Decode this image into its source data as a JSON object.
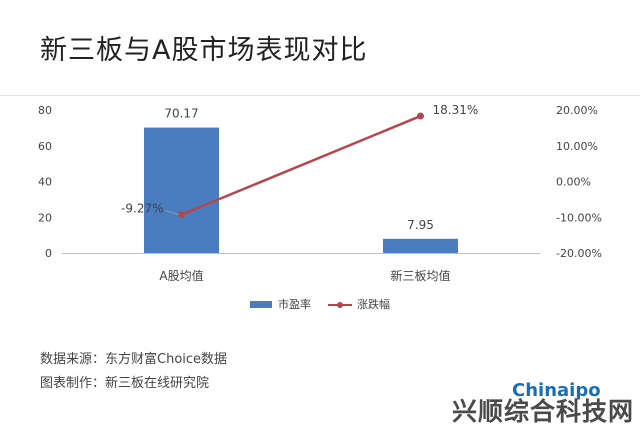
{
  "header": {
    "title": "新三板与A股市场表现对比"
  },
  "footer": {
    "source_label": "数据来源：",
    "source_value": "东方财富Choice数据",
    "made_label": "图表制作：",
    "made_value": "新三板在线研究院"
  },
  "watermark": {
    "text": "兴顺综合科技网",
    "brand": "Chinaipo"
  },
  "chart_data": {
    "type": "bar",
    "categories": [
      "A股均值",
      "新三板均值"
    ],
    "series": [
      {
        "name": "市盈率",
        "kind": "bar",
        "axis": "left",
        "values": [
          70.17,
          7.95
        ],
        "labels": [
          "70.17",
          "7.95"
        ],
        "color": "#4a7cc0"
      },
      {
        "name": "涨跌幅",
        "kind": "line",
        "axis": "right",
        "values": [
          -9.27,
          18.31
        ],
        "labels": [
          "-9.27%",
          "18.31%"
        ],
        "color": "#b5474c"
      }
    ],
    "y_left": {
      "min": 0,
      "max": 80,
      "ticks": [
        "0",
        "20",
        "40",
        "60",
        "80"
      ]
    },
    "y_right": {
      "min": -20,
      "max": 20,
      "ticks": [
        "-20.00%",
        "-10.00%",
        "0.00%",
        "10.00%",
        "20.00%"
      ]
    },
    "legend": {
      "placement": "bottom-center"
    }
  }
}
